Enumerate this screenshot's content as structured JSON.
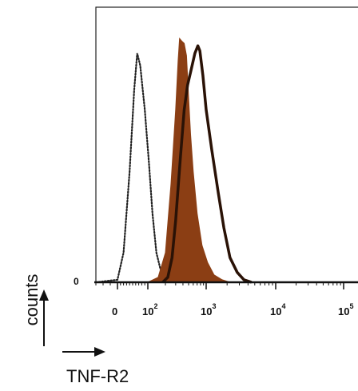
{
  "chart_data": {
    "type": "area",
    "title": "",
    "xlabel": "TNF-R2",
    "ylabel": "counts",
    "x_scale": "logicle",
    "xlim": [
      -30,
      100000
    ],
    "y_tick_label": "0",
    "x_ticks": [
      {
        "value": 0,
        "base": "0",
        "exp": ""
      },
      {
        "value": 100,
        "base": "10",
        "exp": "2"
      },
      {
        "value": 1000,
        "base": "10",
        "exp": "3"
      },
      {
        "value": 10000,
        "base": "10",
        "exp": "4"
      },
      {
        "value": 100000,
        "base": "10",
        "exp": "5"
      }
    ],
    "grid": false,
    "legend": "none",
    "series": [
      {
        "style": "dotted-line",
        "color": "#222222",
        "points": [
          [
            -30,
            0
          ],
          [
            0,
            0.01
          ],
          [
            20,
            0.12
          ],
          [
            40,
            0.45
          ],
          [
            55,
            0.78
          ],
          [
            65,
            0.93
          ],
          [
            75,
            0.88
          ],
          [
            90,
            0.7
          ],
          [
            105,
            0.48
          ],
          [
            120,
            0.28
          ],
          [
            140,
            0.12
          ],
          [
            170,
            0.04
          ],
          [
            220,
            0.01
          ],
          [
            300,
            0
          ]
        ]
      },
      {
        "style": "filled",
        "color": "#8B3E14",
        "points": [
          [
            100,
            0
          ],
          [
            150,
            0.02
          ],
          [
            200,
            0.12
          ],
          [
            250,
            0.4
          ],
          [
            300,
            0.7
          ],
          [
            330,
            0.9
          ],
          [
            350,
            0.99
          ],
          [
            380,
            0.98
          ],
          [
            420,
            0.97
          ],
          [
            460,
            0.92
          ],
          [
            500,
            0.75
          ],
          [
            540,
            0.6
          ],
          [
            600,
            0.45
          ],
          [
            700,
            0.28
          ],
          [
            850,
            0.15
          ],
          [
            1050,
            0.08
          ],
          [
            1300,
            0.03
          ],
          [
            1700,
            0.01
          ],
          [
            2200,
            0
          ]
        ]
      },
      {
        "style": "solid-line",
        "color": "#2a1206",
        "points": [
          [
            180,
            0
          ],
          [
            220,
            0.02
          ],
          [
            260,
            0.1
          ],
          [
            300,
            0.25
          ],
          [
            360,
            0.5
          ],
          [
            420,
            0.7
          ],
          [
            480,
            0.8
          ],
          [
            550,
            0.86
          ],
          [
            640,
            0.93
          ],
          [
            720,
            0.96
          ],
          [
            780,
            0.94
          ],
          [
            880,
            0.84
          ],
          [
            1000,
            0.7
          ],
          [
            1200,
            0.54
          ],
          [
            1500,
            0.36
          ],
          [
            1800,
            0.22
          ],
          [
            2200,
            0.1
          ],
          [
            2800,
            0.04
          ],
          [
            3500,
            0.01
          ],
          [
            4500,
            0
          ]
        ]
      }
    ]
  }
}
